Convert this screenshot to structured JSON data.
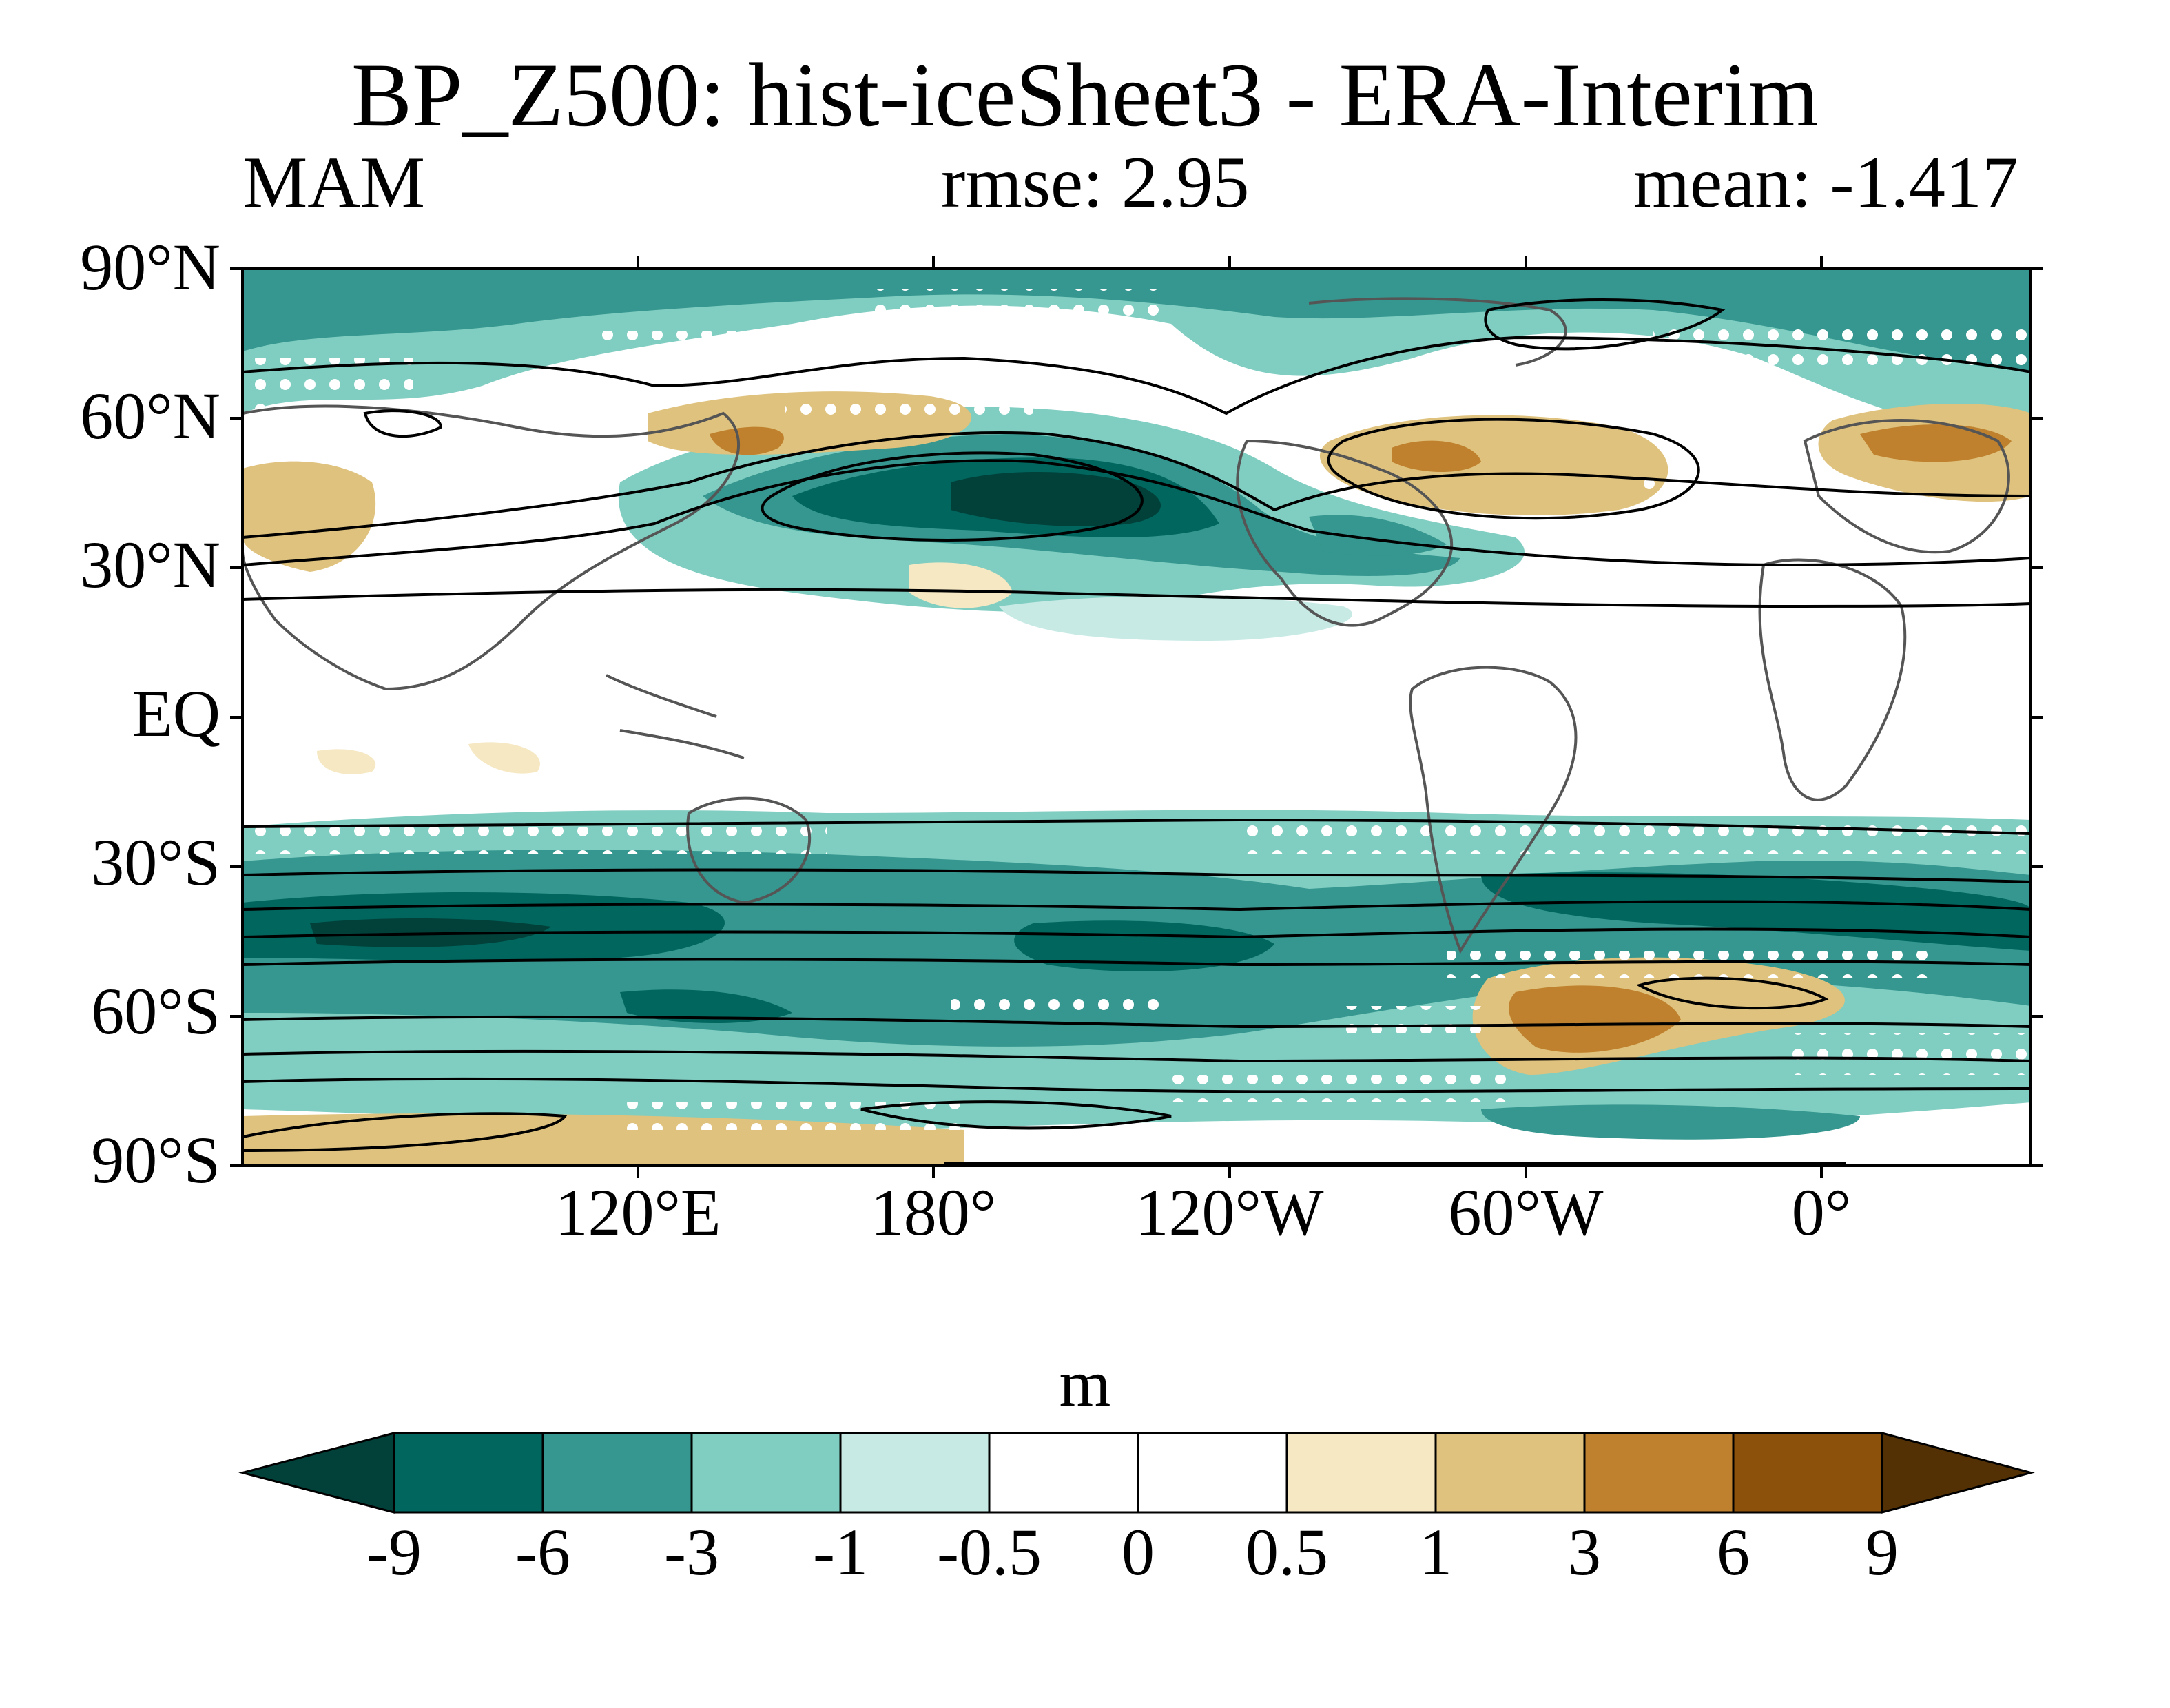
{
  "title": "BP_Z500: hist-iceSheet3 - ERA-Interim",
  "season": "MAM",
  "rmse_label": "rmse: 2.95",
  "mean_label": "mean: -1.417",
  "units": "m",
  "lat_labels": [
    "90°N",
    "60°N",
    "30°N",
    "EQ",
    "30°S",
    "60°S",
    "90°S"
  ],
  "lon_labels": [
    "120°E",
    "180°",
    "120°W",
    "60°W",
    "0°"
  ],
  "colorbar": {
    "levels": [
      "-9",
      "-6",
      "-3",
      "-1",
      "-0.5",
      "0",
      "0.5",
      "1",
      "3",
      "6",
      "9"
    ],
    "colors": [
      "#01413a",
      "#01665e",
      "#35978f",
      "#80cdc1",
      "#c7eae5",
      "#ffffff",
      "#ffffff",
      "#f6e8c3",
      "#dfc27d",
      "#bf812d",
      "#8c510a",
      "#543005"
    ]
  },
  "map": {
    "projection": "cylindrical-equidistant",
    "lon_range": [
      40,
      400
    ],
    "lat_range": [
      -90,
      90
    ],
    "stippling": "white dots mark significant differences",
    "contours": "black climatology contours"
  }
}
